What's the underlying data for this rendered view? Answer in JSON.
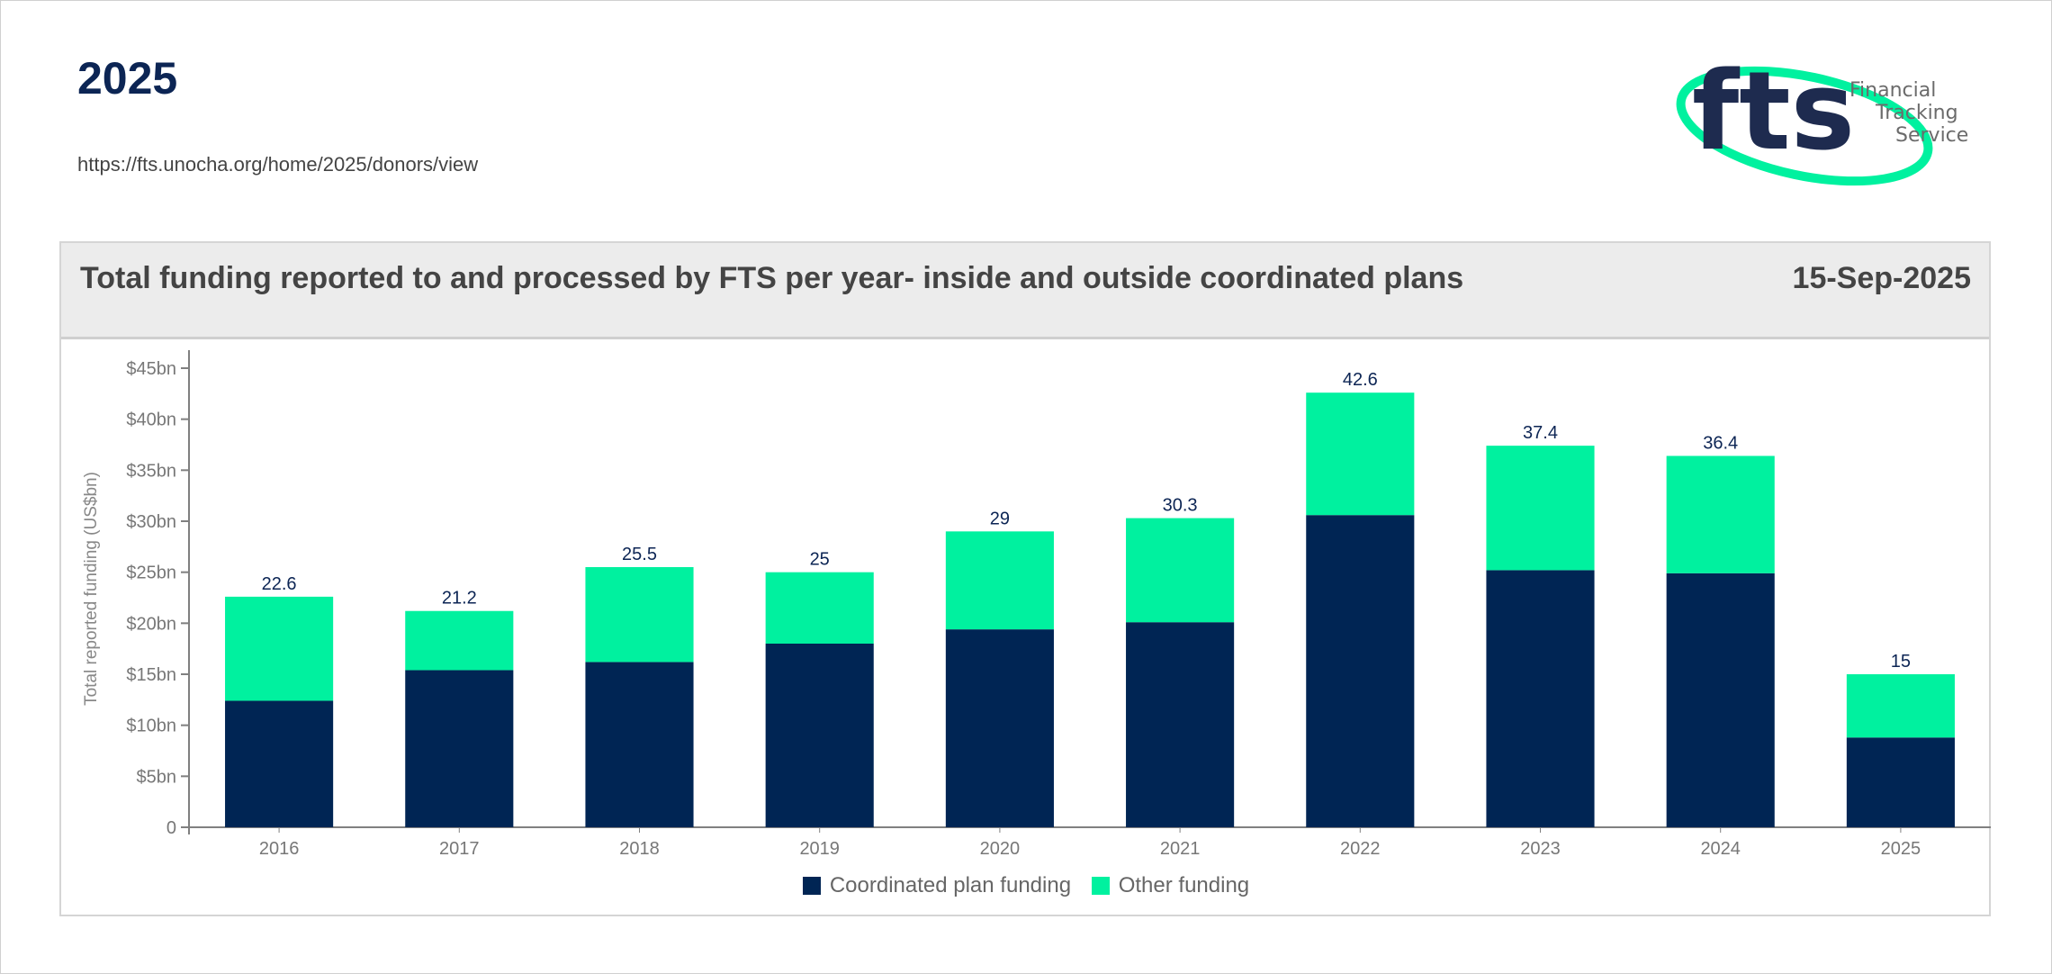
{
  "header": {
    "year": "2025",
    "url": "https://fts.unocha.org/home/2025/donors/view"
  },
  "logo": {
    "mark": "fts",
    "line1": "Financial",
    "line2": "Tracking",
    "line3": "Service"
  },
  "panel": {
    "title": "Total funding reported to and processed by FTS per year- inside and outside coordinated plans",
    "date": "15-Sep-2025"
  },
  "colors": {
    "coordinated": "#002554",
    "other": "#00f19f",
    "axis": "#808080",
    "label": "#0c2554"
  },
  "chart_data": {
    "type": "bar",
    "stacked": true,
    "title": "Total funding reported to and processed by FTS per year- inside and outside coordinated plans",
    "xlabel": "",
    "ylabel": "Total reported funding (US$bn)",
    "ylim": [
      0,
      45
    ],
    "yticks": [
      0,
      5,
      10,
      15,
      20,
      25,
      30,
      35,
      40,
      45
    ],
    "ytick_labels": [
      "0",
      "$5bn",
      "$10bn",
      "$15bn",
      "$20bn",
      "$25bn",
      "$30bn",
      "$35bn",
      "$40bn",
      "$45bn"
    ],
    "categories": [
      "2016",
      "2017",
      "2018",
      "2019",
      "2020",
      "2021",
      "2022",
      "2023",
      "2024",
      "2025"
    ],
    "series": [
      {
        "name": "Coordinated plan funding",
        "values": [
          12.4,
          15.4,
          16.2,
          18.0,
          19.4,
          20.1,
          30.6,
          25.2,
          24.9,
          8.8
        ]
      },
      {
        "name": "Other funding",
        "values": [
          10.2,
          5.8,
          9.3,
          7.0,
          9.6,
          10.2,
          12.0,
          12.2,
          11.5,
          6.2
        ]
      }
    ],
    "totals": [
      "22.6",
      "21.2",
      "25.5",
      "25",
      "29",
      "30.3",
      "42.6",
      "37.4",
      "36.4",
      "15"
    ],
    "legend": [
      "Coordinated plan funding",
      "Other funding"
    ]
  }
}
